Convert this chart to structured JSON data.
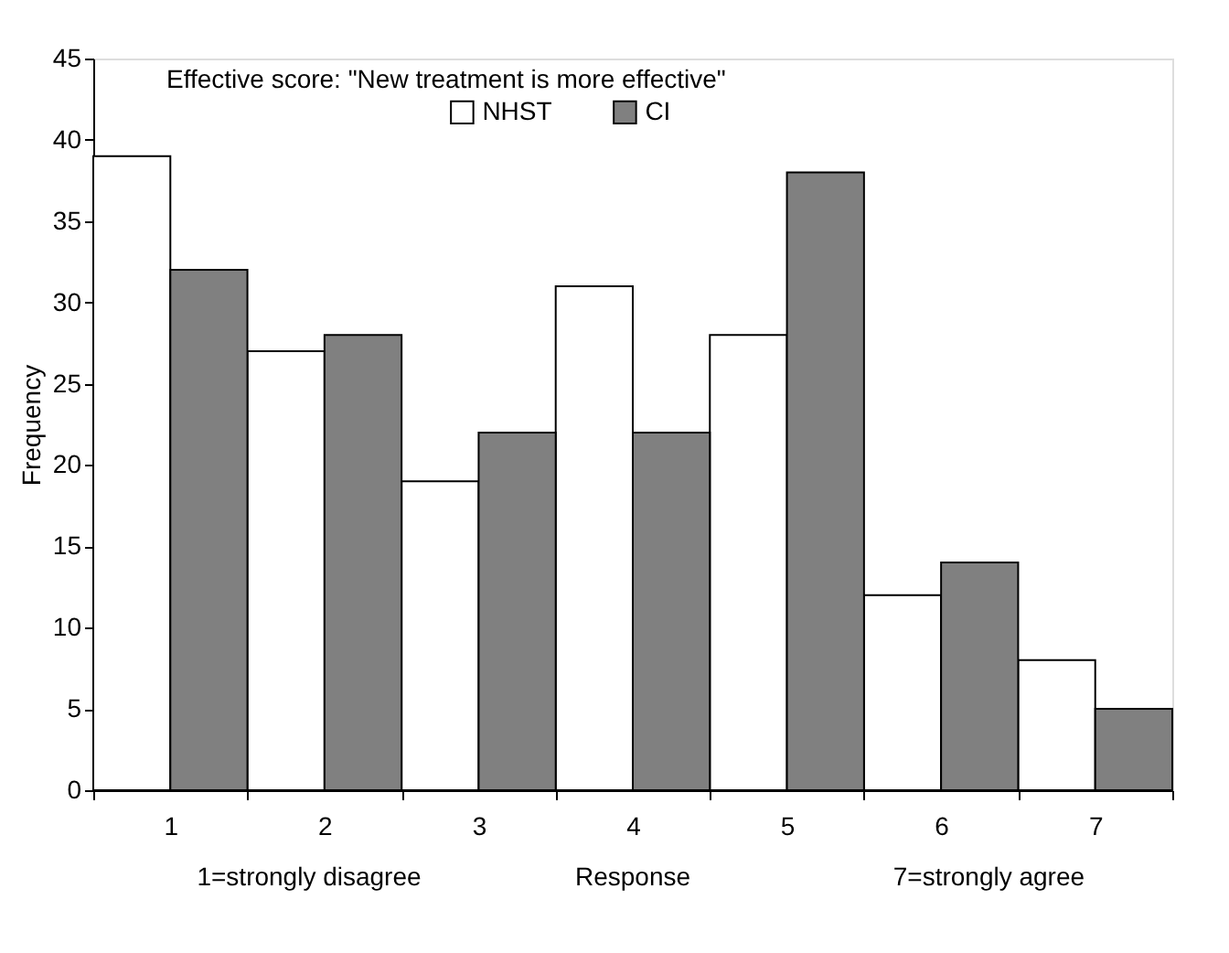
{
  "chart_data": {
    "type": "bar",
    "title": "Effective score: \"New treatment is more effective\"",
    "xlabel": "Response",
    "ylabel": "Frequency",
    "categories": [
      "1",
      "2",
      "3",
      "4",
      "5",
      "6",
      "7"
    ],
    "series": [
      {
        "name": "NHST",
        "color": "#ffffff",
        "values": [
          39,
          27,
          19,
          31,
          28,
          12,
          8
        ]
      },
      {
        "name": "CI",
        "color": "#808080",
        "values": [
          32,
          28,
          22,
          22,
          38,
          14,
          5
        ]
      }
    ],
    "ylim": [
      0,
      45
    ],
    "yticks": [
      0,
      5,
      10,
      15,
      20,
      25,
      30,
      35,
      40,
      45
    ],
    "grid": false,
    "legend": "top",
    "annotations": [
      "1=strongly disagree",
      "7=strongly agree"
    ]
  }
}
